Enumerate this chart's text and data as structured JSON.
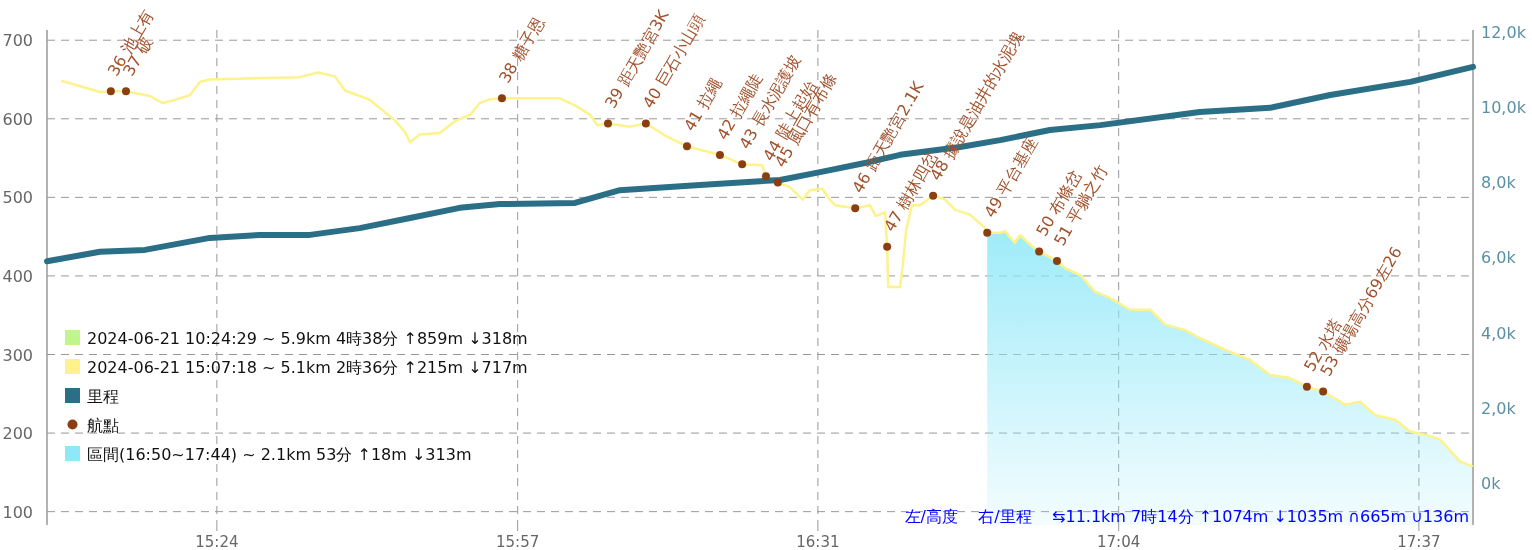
{
  "chart_data": {
    "type": "line",
    "legend": "bottom left",
    "grid": true,
    "xlim": [
      15.086,
      17.722
    ],
    "ylim": [
      83,
      713
    ],
    "y2lim": [
      -1117,
      12050
    ],
    "xticks": [
      {
        "value": 15.4,
        "label": "15:24"
      },
      {
        "value": 15.956,
        "label": "15:57"
      },
      {
        "value": 16.511,
        "label": "16:31"
      },
      {
        "value": 17.067,
        "label": "17:04"
      },
      {
        "value": 17.622,
        "label": "17:37"
      }
    ],
    "yticks": [
      100,
      200,
      300,
      400,
      500,
      600,
      700
    ],
    "y2ticks": [
      {
        "value": 0,
        "label": "0k"
      },
      {
        "value": 2000,
        "label": "2,0k"
      },
      {
        "value": 4000,
        "label": "4,0k"
      },
      {
        "value": 6000,
        "label": "6,0k"
      },
      {
        "value": 8000,
        "label": "8,0k"
      },
      {
        "value": 10000,
        "label": "10,0k"
      },
      {
        "value": 12000,
        "label": "12,0k"
      }
    ],
    "series": [
      {
        "name": "2024-06-21 10:24:29 ~ 5.9km 4時38分 ↑859m ↓318m",
        "color": "#bff58a"
      },
      {
        "name": "2024-06-21 15:07:18 ~ 5.1km 2時36分 ↑215m ↓717m",
        "color": "#fdf28c",
        "x": [
          15.114,
          15.184,
          15.204,
          15.232,
          15.276,
          15.3,
          15.322,
          15.35,
          15.369,
          15.387,
          15.553,
          15.587,
          15.618,
          15.637,
          15.683,
          15.729,
          15.748,
          15.757,
          15.775,
          15.812,
          15.84,
          15.868,
          15.886,
          15.905,
          15.927,
          16.034,
          16.062,
          16.09,
          16.103,
          16.123,
          16.164,
          16.193,
          16.228,
          16.269,
          16.33,
          16.371,
          16.408,
          16.415,
          16.437,
          16.459,
          16.483,
          16.496,
          16.519,
          16.533,
          16.543,
          16.58,
          16.607,
          16.618,
          16.635,
          16.639,
          16.641,
          16.663,
          16.668,
          16.674,
          16.685,
          16.7,
          16.724,
          16.728,
          16.746,
          16.765,
          16.792,
          16.82,
          16.824,
          16.848,
          16.857,
          16.875,
          16.885,
          16.903,
          16.92,
          16.953,
          16.968,
          16.996,
          17.023,
          17.051,
          17.088,
          17.125,
          17.153,
          17.19,
          17.217,
          17.264,
          17.31,
          17.347,
          17.384,
          17.415,
          17.445,
          17.486,
          17.513,
          17.541,
          17.578,
          17.606,
          17.633,
          17.661,
          17.698,
          17.72
        ],
        "values": [
          648,
          634,
          635,
          635,
          629,
          620,
          624,
          630,
          647,
          650,
          653,
          659,
          654,
          636,
          624,
          598,
          583,
          570,
          580,
          582,
          597,
          605,
          620,
          625,
          626,
          626,
          617,
          605,
          592,
          594,
          590,
          594,
          579,
          565,
          554,
          542,
          541,
          527,
          519,
          513,
          497,
          509,
          511,
          497,
          490,
          486,
          490,
          476,
          481,
          437,
          386,
          386,
          414,
          458,
          490,
          490,
          502,
          502,
          497,
          484,
          478,
          461,
          455,
          455,
          457,
          442,
          452,
          440,
          431,
          419,
          410,
          401,
          380,
          372,
          357,
          357,
          338,
          331,
          321,
          306,
          293,
          274,
          270,
          259,
          253,
          236,
          240,
          223,
          217,
          202,
          198,
          192,
          164,
          158
        ]
      },
      {
        "name": "里程",
        "axis": "y2",
        "color": "#2a6f86",
        "x": [
          15.086,
          15.184,
          15.267,
          15.387,
          15.48,
          15.572,
          15.664,
          15.757,
          15.849,
          15.923,
          16.062,
          16.145,
          16.293,
          16.441,
          16.515,
          16.607,
          16.663,
          16.774,
          16.848,
          16.94,
          17.033,
          17.217,
          17.347,
          17.458,
          17.606,
          17.722
        ],
        "values": [
          5900,
          6150,
          6200,
          6520,
          6600,
          6600,
          6780,
          7050,
          7320,
          7420,
          7450,
          7790,
          7930,
          8060,
          8270,
          8540,
          8730,
          8940,
          9120,
          9390,
          9520,
          9870,
          9980,
          10320,
          10670,
          11070
        ]
      },
      {
        "name": "航點",
        "type": "scatter",
        "color": "#8b3f10",
        "x": [
          15.204,
          15.232,
          15.927,
          16.123,
          16.193,
          16.269,
          16.33,
          16.371,
          16.415,
          16.437,
          16.58,
          16.639,
          16.724,
          16.824,
          16.92,
          16.953,
          17.415,
          17.445
        ],
        "values": [
          635,
          635,
          626,
          594,
          594,
          565,
          554,
          542,
          527,
          519,
          486,
          437,
          502,
          455,
          431,
          419,
          259,
          253
        ]
      },
      {
        "name": "區間(16:50~17:44) ~ 2.1km 53分 ↑18m ↓313m",
        "type": "area",
        "color": "#8ee8f8",
        "x": [
          16.824,
          16.848,
          16.857,
          16.875,
          16.885,
          16.903,
          16.92,
          16.953,
          16.968,
          16.996,
          17.023,
          17.051,
          17.088,
          17.125,
          17.153,
          17.19,
          17.217,
          17.264,
          17.31,
          17.347,
          17.384,
          17.415,
          17.445,
          17.486,
          17.513,
          17.541,
          17.578,
          17.606,
          17.633,
          17.661,
          17.698,
          17.72
        ],
        "values": [
          455,
          455,
          457,
          442,
          452,
          440,
          431,
          419,
          410,
          401,
          380,
          372,
          357,
          357,
          338,
          331,
          321,
          306,
          293,
          274,
          270,
          259,
          253,
          236,
          240,
          223,
          217,
          202,
          198,
          192,
          164,
          158
        ]
      }
    ],
    "annotations": [
      "左/高度    右/里程    ⇆11.1km 7時14分 ↑1074m ↓1035m ∩665m ∪136m",
      {
        "text": "36 池上有",
        "x": 15.204,
        "y": 635
      },
      {
        "text": "37 破",
        "x": 15.232,
        "y": 635
      },
      {
        "text": "38 糖子恩",
        "x": 15.927,
        "y": 626
      },
      {
        "text": "39 距天艷宮3K",
        "x": 16.123,
        "y": 594
      },
      {
        "text": "40 巨石小山頭",
        "x": 16.193,
        "y": 594
      },
      {
        "text": "41 拉繩",
        "x": 16.269,
        "y": 565
      },
      {
        "text": "42 拉繩陡",
        "x": 16.33,
        "y": 554
      },
      {
        "text": "43 長水泥護坡",
        "x": 16.371,
        "y": 542
      },
      {
        "text": "44 陡上起始",
        "x": 16.415,
        "y": 527
      },
      {
        "text": "45 風口有布條",
        "x": 16.437,
        "y": 519
      },
      {
        "text": "46 距天艷宮2.1K",
        "x": 16.58,
        "y": 486
      },
      {
        "text": "47 樹林四岔",
        "x": 16.639,
        "y": 437
      },
      {
        "text": "48 據說是油井的水泥塊",
        "x": 16.724,
        "y": 502
      },
      {
        "text": "49 平台基座",
        "x": 16.824,
        "y": 455
      },
      {
        "text": "50 布條岔",
        "x": 16.92,
        "y": 431
      },
      {
        "text": "51 平躺之竹",
        "x": 16.953,
        "y": 419
      },
      {
        "text": "52 水塔",
        "x": 17.415,
        "y": 259
      },
      {
        "text": "53 礦場高分69左26",
        "x": 17.445,
        "y": 253
      }
    ]
  }
}
